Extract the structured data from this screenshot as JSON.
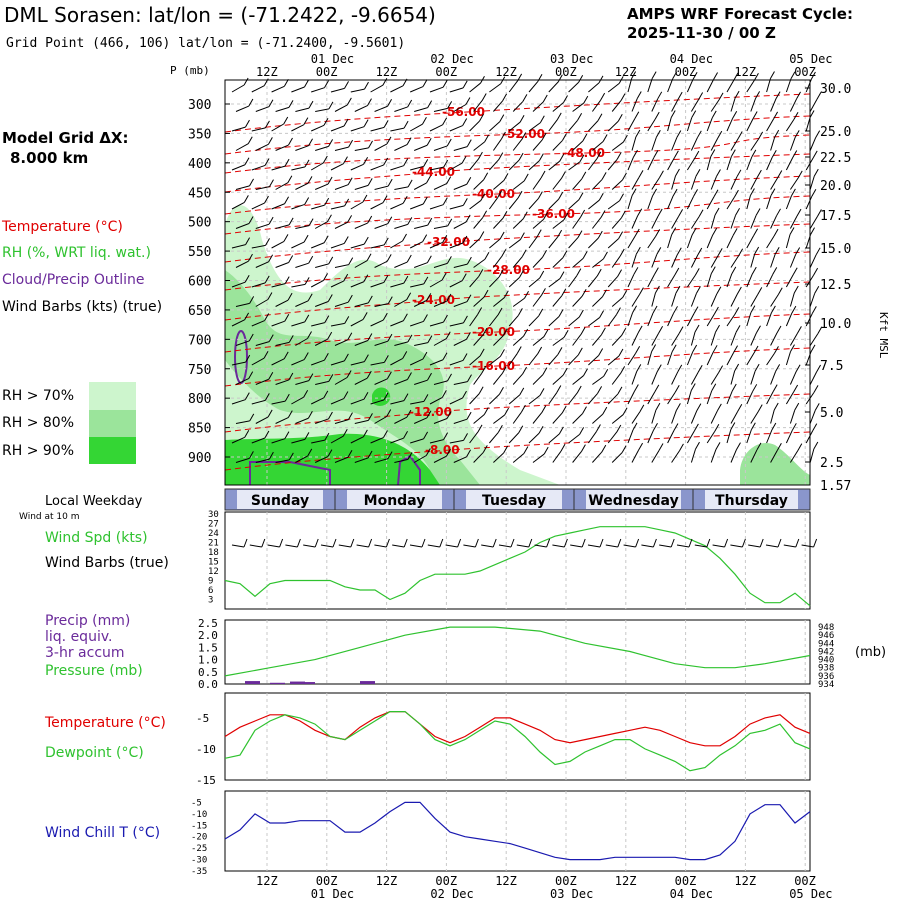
{
  "title": "DML Sorasen:  lat/lon = (-71.2422, -9.6654)",
  "subtitle": "Grid Point (466, 106) lat/lon = (-71.2400, -9.5601)",
  "forecast_title": "AMPS WRF Forecast Cycle:",
  "forecast_cycle": "2025-11-30 / 00  Z",
  "model_grid_label": "Model Grid ΔX:",
  "model_grid_value": "8.000 km",
  "p_axis_label": "P (mb)",
  "kft_label": "Kft MSL",
  "legend": {
    "temperature": "Temperature (°C)",
    "rh": "RH (%, WRT liq. wat.)",
    "cloud": "Cloud/Precip Outline",
    "wind": "Wind Barbs (kts) (true)",
    "rh70": "RH > 70%",
    "rh80": "RH > 80%",
    "rh90": "RH > 90%"
  },
  "labels": {
    "local_weekday": "Local Weekday",
    "wind_at_10m": "Wind at 10 m",
    "wind_spd": "Wind Spd (kts)",
    "wind_barbs": "Wind Barbs (true)",
    "precip1": "Precip (mm)",
    "precip2": "liq. equiv.",
    "precip3": "3-hr accum",
    "pressure": "Pressure (mb)",
    "mb_unit": "(mb)",
    "temperature": "Temperature (°C)",
    "dewpoint": "Dewpoint (°C)",
    "windchill": "Wind Chill T (°C)"
  },
  "colors": {
    "temp": "#e00000",
    "green": "#2fc22f",
    "purple": "#6a2a9a",
    "blue": "#1a1ab0",
    "rh70": "#cdf5cd",
    "rh80": "#9be49b",
    "rh90": "#34d634",
    "grid": "#c8c8c8"
  },
  "chart_data": [
    {
      "type": "cross-section",
      "name": "time-height",
      "time_ticks": [
        "12Z",
        "00Z",
        "12Z",
        "00Z",
        "12Z",
        "00Z",
        "12Z",
        "00Z",
        "12Z",
        "00Z"
      ],
      "date_labels": [
        "01 Dec",
        "02 Dec",
        "03 Dec",
        "04 Dec",
        "05 Dec"
      ],
      "pressure_levels": [
        300,
        350,
        400,
        450,
        500,
        550,
        600,
        650,
        700,
        750,
        800,
        850,
        900
      ],
      "height_kft": [
        "30.0",
        "25.0",
        "22.5",
        "20.0",
        "17.5",
        "15.0",
        "12.5",
        "10.0",
        "7.5",
        "5.0",
        "2.5",
        "1.57"
      ],
      "temperature_contours": [
        {
          "value": "-56.00"
        },
        {
          "value": "-52.00"
        },
        {
          "value": "-48.00"
        },
        {
          "value": "-44.00"
        },
        {
          "value": "-40.00"
        },
        {
          "value": "-36.00"
        },
        {
          "value": "-32.00"
        },
        {
          "value": "-28.00"
        },
        {
          "value": "-24.00"
        },
        {
          "value": "-20.00"
        },
        {
          "value": "-16.00"
        },
        {
          "value": "-12.00"
        },
        {
          "value": "-8.00"
        }
      ]
    },
    {
      "type": "timeline",
      "name": "weekdays",
      "days": [
        "Sunday",
        "Monday",
        "Tuesday",
        "Wednesday",
        "Thursday"
      ]
    },
    {
      "type": "line",
      "name": "wind-speed",
      "ylabel": "Wind Spd (kts)",
      "yticks": [
        3,
        6,
        9,
        12,
        15,
        18,
        21,
        24,
        27,
        30
      ],
      "ylim": [
        0,
        30
      ],
      "x_hours": [
        0,
        3,
        6,
        9,
        12,
        15,
        18,
        21,
        24,
        27,
        30,
        33,
        36,
        39,
        42,
        45,
        48,
        51,
        54,
        57,
        60,
        63,
        66,
        69,
        72,
        75,
        78,
        81,
        84,
        87,
        90,
        93,
        96,
        99,
        102,
        105,
        108,
        111,
        114,
        117
      ],
      "values": [
        9,
        8,
        4,
        8,
        9,
        9,
        9,
        9,
        7,
        6,
        6,
        3,
        5,
        9,
        11,
        11,
        11,
        12,
        14,
        16,
        18,
        21,
        23,
        24,
        25,
        26,
        26,
        26,
        26,
        25,
        24,
        22,
        20,
        16,
        11,
        5,
        2,
        2,
        5,
        1
      ]
    },
    {
      "type": "bar+line",
      "name": "precip-pressure",
      "precip_label": "Precip (mm)",
      "pressure_label": "Pressure (mb)",
      "left_ticks": [
        "0.0",
        "0.5",
        "1.0",
        "1.5",
        "2.0",
        "2.5"
      ],
      "left_ylim": [
        0,
        2.5
      ],
      "right_ticks": [
        "934",
        "936",
        "938",
        "940",
        "942",
        "944",
        "946",
        "948"
      ],
      "right_ylim": [
        934,
        949
      ],
      "precip_bars": [
        {
          "start": 4,
          "end": 7,
          "value": 0.12
        },
        {
          "start": 9,
          "end": 12,
          "value": 0.05
        },
        {
          "start": 13,
          "end": 16,
          "value": 0.1
        },
        {
          "start": 16,
          "end": 18,
          "value": 0.08
        },
        {
          "start": 27,
          "end": 30,
          "value": 0.12
        }
      ],
      "pressure_hours": [
        0,
        9,
        18,
        27,
        36,
        45,
        54,
        63,
        72,
        81,
        90,
        96,
        102,
        108,
        117
      ],
      "pressure_values": [
        936,
        938,
        940,
        943,
        946,
        948,
        948,
        947,
        944,
        942,
        939,
        938,
        938,
        939,
        941
      ]
    },
    {
      "type": "line",
      "name": "temperature-dewpoint",
      "yticks": [
        -5,
        -10,
        -15
      ],
      "ylim": [
        -15,
        -1
      ],
      "x_hours": [
        0,
        3,
        6,
        9,
        12,
        15,
        18,
        21,
        24,
        27,
        30,
        33,
        36,
        39,
        42,
        45,
        48,
        51,
        54,
        57,
        60,
        63,
        66,
        69,
        72,
        75,
        78,
        81,
        84,
        87,
        90,
        93,
        96,
        99,
        102,
        105,
        108,
        111,
        114,
        117
      ],
      "series": [
        {
          "name": "Temperature",
          "values": [
            -8,
            -6.5,
            -5.5,
            -4.5,
            -4.5,
            -5.5,
            -7,
            -8,
            -8.5,
            -6.5,
            -5,
            -4,
            -4,
            -6,
            -8,
            -9,
            -8,
            -6.5,
            -5,
            -5,
            -6,
            -7,
            -8.5,
            -9,
            -8.5,
            -8,
            -7.5,
            -7,
            -6.5,
            -7,
            -8,
            -9,
            -9.5,
            -9.5,
            -8,
            -6,
            -5,
            -4.5,
            -6.5,
            -7.5
          ]
        },
        {
          "name": "Dewpoint",
          "values": [
            -11.5,
            -11,
            -7,
            -5.5,
            -4.5,
            -5,
            -6,
            -8,
            -8.5,
            -7,
            -5.5,
            -4,
            -4,
            -6,
            -8.5,
            -9.5,
            -8.5,
            -7,
            -5.5,
            -6,
            -8,
            -10.5,
            -12.5,
            -12,
            -10.5,
            -9.5,
            -8.5,
            -8.5,
            -10,
            -11,
            -12,
            -13.5,
            -13,
            -11,
            -9.5,
            -7.5,
            -7,
            -6,
            -9,
            -10
          ]
        }
      ]
    },
    {
      "type": "line",
      "name": "wind-chill",
      "ylabel": "Wind Chill T (°C)",
      "yticks": [
        -5,
        -10,
        -15,
        -20,
        -25,
        -30,
        -35
      ],
      "ylim": [
        -35,
        0
      ],
      "x_hours": [
        0,
        3,
        6,
        9,
        12,
        15,
        18,
        21,
        24,
        27,
        30,
        33,
        36,
        39,
        42,
        45,
        48,
        51,
        54,
        57,
        60,
        63,
        66,
        69,
        72,
        75,
        78,
        81,
        84,
        87,
        90,
        93,
        96,
        99,
        102,
        105,
        108,
        111,
        114,
        117
      ],
      "values": [
        -21,
        -17,
        -10,
        -14,
        -14,
        -13,
        -13,
        -13,
        -18,
        -18,
        -14,
        -9,
        -5,
        -5,
        -12,
        -18,
        -20,
        -21,
        -22,
        -23,
        -25,
        -27,
        -29,
        -30,
        -30,
        -30,
        -29,
        -29,
        -29,
        -29,
        -29,
        -30,
        -30,
        -28,
        -22,
        -10,
        -6,
        -6,
        -14,
        -9
      ]
    }
  ]
}
